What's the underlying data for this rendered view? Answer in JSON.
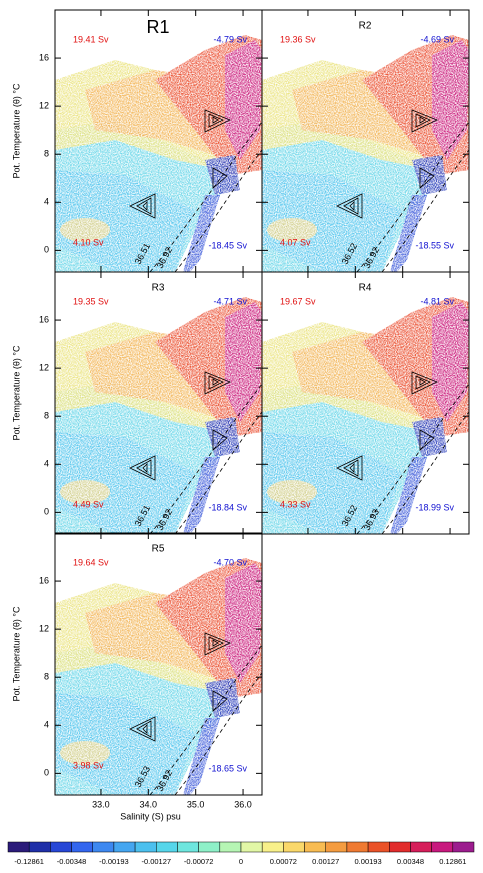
{
  "chart_data": {
    "type": "scatter",
    "xlabel": "Salinity (S) psu",
    "ylabel": "Pot. Temperature (θ) °C",
    "xlim": [
      32.03,
      36.4
    ],
    "ylim": [
      -1.8,
      20
    ],
    "xticks": [
      {
        "value": 33,
        "label": "33.0"
      },
      {
        "value": 34,
        "label": "34.0"
      },
      {
        "value": 35,
        "label": "35.0"
      },
      {
        "value": 36,
        "label": "36.0"
      }
    ],
    "yticks": [
      0,
      4,
      8,
      12,
      16
    ],
    "panels": [
      {
        "title": "R1",
        "upper_left": "19.41 Sv",
        "upper_right": "-4.79 Sv",
        "lower_left": "4.10 Sv",
        "lower_right": "-18.45 Sv",
        "isopycnals": [
          "36.51",
          "36.92"
        ]
      },
      {
        "title": "R2",
        "upper_left": "19.36 Sv",
        "upper_right": "-4.69 Sv",
        "lower_left": "4.07 Sv",
        "lower_right": "-18.55 Sv",
        "isopycnals": [
          "36.52",
          "36.92"
        ]
      },
      {
        "title": "R3",
        "upper_left": "19.35 Sv",
        "upper_right": "-4.71 Sv",
        "lower_left": "4.49 Sv",
        "lower_right": "-18.84 Sv",
        "isopycnals": [
          "36.51",
          "36.92"
        ]
      },
      {
        "title": "R4",
        "upper_left": "19.67 Sv",
        "upper_right": "-4.81 Sv",
        "lower_left": "4.33 Sv",
        "lower_right": "-18.99 Sv",
        "isopycnals": [
          "36.52",
          "36.93"
        ]
      },
      {
        "title": "R5",
        "upper_left": "19.64 Sv",
        "upper_right": "-4.70 Sv",
        "lower_left": "3.98 Sv",
        "lower_right": "-18.65 Sv",
        "isopycnals": [
          "36.53",
          "36.92"
        ]
      }
    ],
    "colorbar": {
      "colors": [
        "#2b1b7a",
        "#1f2fa8",
        "#2747d6",
        "#3366ee",
        "#3d88f0",
        "#45a6f0",
        "#4cc0ee",
        "#56d6ea",
        "#6ee6de",
        "#8ef0c8",
        "#b6f5b4",
        "#e2f7a6",
        "#f8f08a",
        "#fad86a",
        "#f8bc52",
        "#f49c40",
        "#ef7a32",
        "#ea5228",
        "#e22c2c",
        "#d61e5a",
        "#c8197e",
        "#9c1c8e"
      ],
      "labels": [
        "-0.12861",
        "-0.00348",
        "-0.00193",
        "-0.00127",
        "-0.00072",
        "0",
        "0.00072",
        "0.00127",
        "0.00193",
        "0.00348",
        "0.12861"
      ]
    }
  }
}
